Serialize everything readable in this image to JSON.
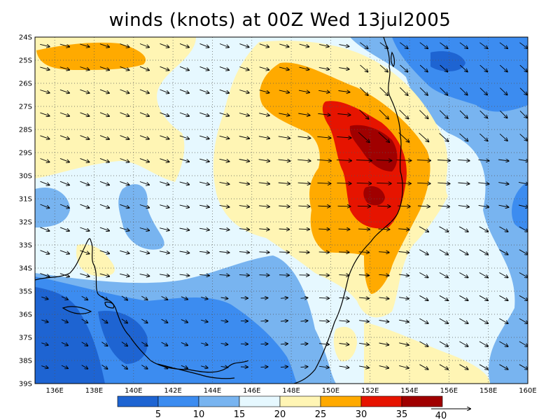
{
  "title": "winds (knots) at 00Z Wed 13jul2005",
  "map": {
    "lat_labels": [
      "24S",
      "25S",
      "26S",
      "27S",
      "28S",
      "29S",
      "30S",
      "31S",
      "32S",
      "33S",
      "34S",
      "35S",
      "36S",
      "37S",
      "38S",
      "39S"
    ],
    "lon_labels": [
      "136E",
      "138E",
      "140E",
      "142E",
      "144E",
      "146E",
      "148E",
      "150E",
      "152E",
      "154E",
      "156E",
      "158E",
      "160E"
    ],
    "lat_range_deg_south": [
      24,
      39
    ],
    "lon_range_deg_east": [
      135,
      160
    ],
    "grid": "dotted",
    "vector_field": "wind barbs (arrows), mostly westerly to north-westerly"
  },
  "legend": {
    "labels": [
      "5",
      "10",
      "15",
      "20",
      "25",
      "30",
      "35",
      "40"
    ],
    "colors": [
      "#1e64d2",
      "#3c8cf0",
      "#78b4f0",
      "#e6f8ff",
      "#fff5b4",
      "#ffaa00",
      "#e61400",
      "#a00000"
    ],
    "reference_vector_label": "40"
  },
  "palette": {
    "lt5": "#1e64d2",
    "5_10": "#3c8cf0",
    "10_15": "#78b4f0",
    "15_20": "#e6f8ff",
    "20_25": "#fff5b4",
    "25_30": "#ffaa00",
    "30_35": "#e61400",
    "gt35": "#a00000"
  }
}
